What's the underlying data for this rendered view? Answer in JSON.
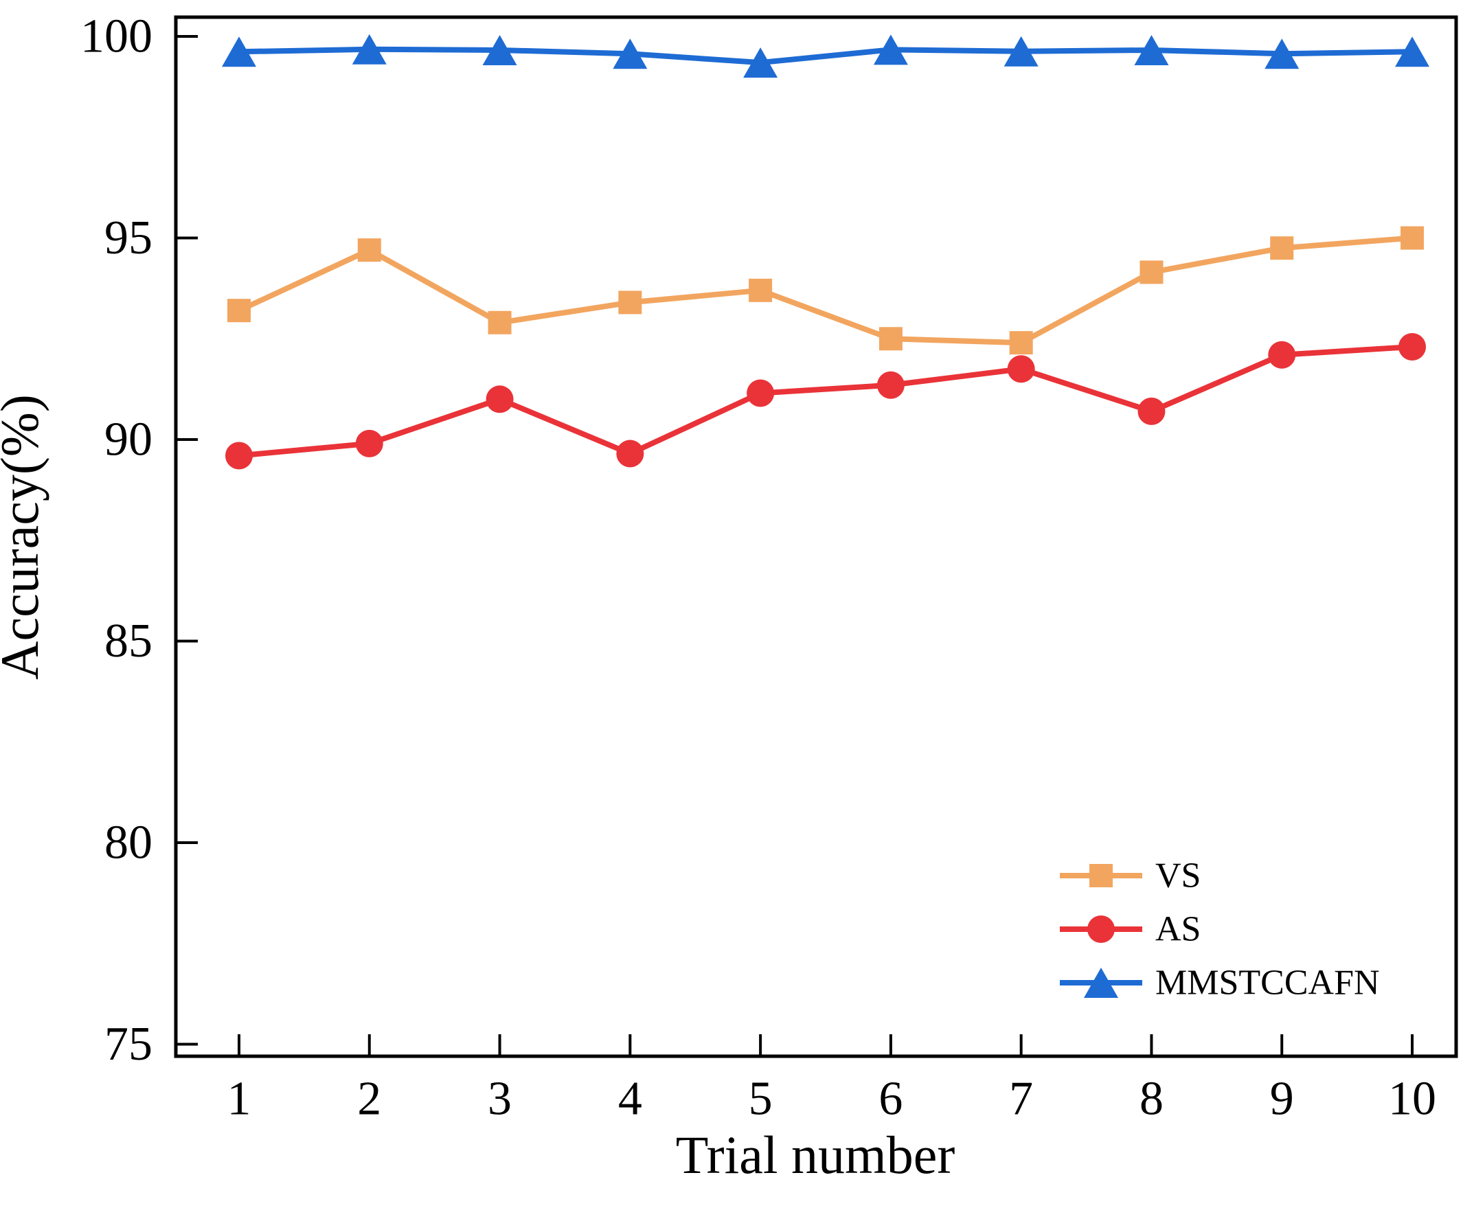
{
  "figure": {
    "background": "#ffffff"
  },
  "chart_data": {
    "type": "line",
    "title": "",
    "xlabel": "Trial number",
    "ylabel": "Accuracy(%)",
    "x_ticks": [
      1,
      2,
      3,
      4,
      5,
      6,
      7,
      8,
      9,
      10
    ],
    "y_ticks": [
      75,
      80,
      85,
      90,
      95,
      100
    ],
    "xlim": [
      0.5,
      10.35
    ],
    "ylim": [
      74.7,
      100.5
    ],
    "grid": false,
    "legend": {
      "position": "lower-right"
    },
    "axis_color": "#000000",
    "text_color": "#000000",
    "series": [
      {
        "name": "VS",
        "color": "#F2A55F",
        "marker": "square",
        "values": [
          93.2,
          94.7,
          92.9,
          93.4,
          93.7,
          92.5,
          92.4,
          94.15,
          94.75,
          95.0
        ]
      },
      {
        "name": "AS",
        "color": "#E93338",
        "marker": "circle",
        "values": [
          89.6,
          89.9,
          91.0,
          89.65,
          91.15,
          91.35,
          91.75,
          90.7,
          92.1,
          92.3
        ]
      },
      {
        "name": "MMSTCCAFN",
        "color": "#1E6BD4",
        "marker": "triangle",
        "values": [
          99.62,
          99.68,
          99.66,
          99.57,
          99.35,
          99.67,
          99.63,
          99.66,
          99.57,
          99.62
        ]
      }
    ]
  }
}
